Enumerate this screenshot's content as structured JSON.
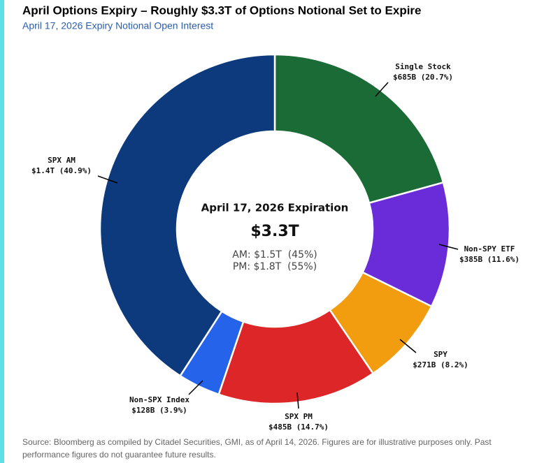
{
  "chart_data": {
    "type": "pie",
    "title": "April Options Expiry – Roughly $3.3T of Options Notional Set to Expire",
    "subtitle": "April 17, 2026 Expiry Notional Open Interest",
    "categories": [
      "Single Stock",
      "Non-SPY ETF",
      "SPY",
      "SPX PM",
      "Non-SPX Index",
      "SPX AM"
    ],
    "values": [
      20.7,
      11.6,
      8.2,
      14.7,
      3.9,
      40.9
    ],
    "value_labels": [
      "$685B (20.7%)",
      "$385B (11.6%)",
      "$271B (8.2%)",
      "$485B (14.7%)",
      "$128B (3.9%)",
      "$1.4T (40.9%)"
    ],
    "colors": [
      "#1a6b36",
      "#6a2bd8",
      "#f29d0f",
      "#dc2627",
      "#2563eb",
      "#0c3a7c"
    ],
    "center_title": "April 17, 2026 Expiration",
    "center_total": "$3.3T",
    "center_lines": [
      "AM: $1.5T  (45%)",
      "PM: $1.8T  (55%)"
    ],
    "source": [
      "Source: Bloomberg as compiled by Citadel Securities, GMI, as of April 14, 2026. Figures are for illustrative purposes only. Past",
      "performance figures do not guarantee future results."
    ]
  }
}
